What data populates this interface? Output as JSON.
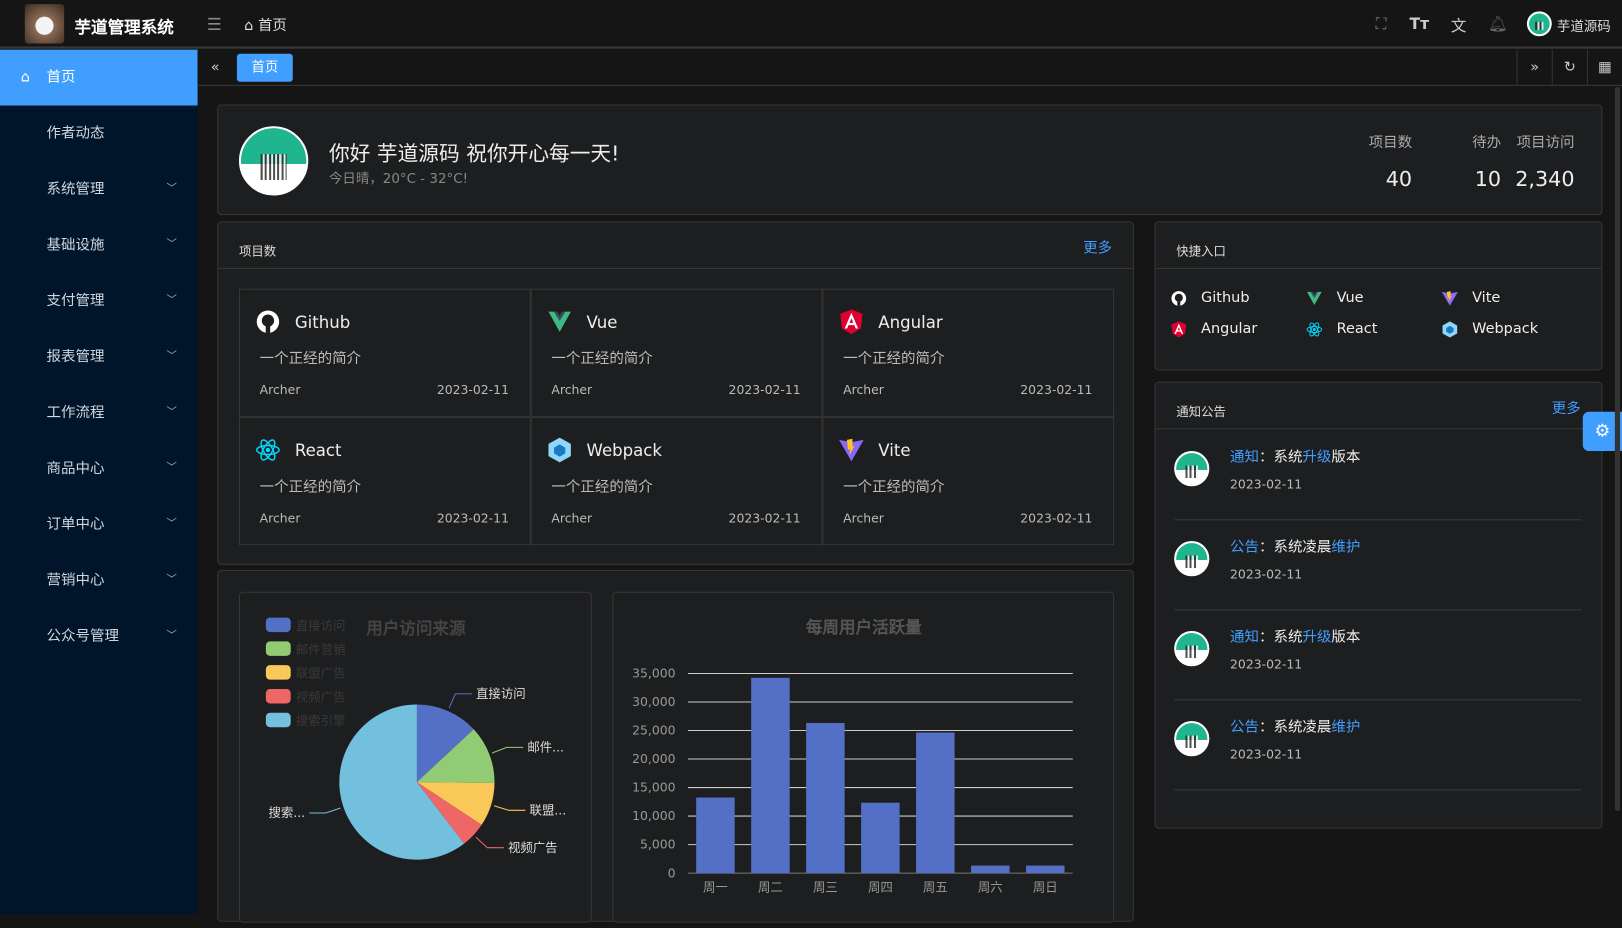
{
  "app": {
    "title": "芋道管理系统",
    "breadcrumb": "首页",
    "user": "芋道源码"
  },
  "sidebar": {
    "items": [
      {
        "label": "首页",
        "icon": "home-icon",
        "active": true
      },
      {
        "label": "作者动态"
      },
      {
        "label": "系统管理",
        "expandable": true
      },
      {
        "label": "基础设施",
        "expandable": true
      },
      {
        "label": "支付管理",
        "expandable": true
      },
      {
        "label": "报表管理",
        "expandable": true
      },
      {
        "label": "工作流程",
        "expandable": true
      },
      {
        "label": "商品中心",
        "expandable": true
      },
      {
        "label": "订单中心",
        "expandable": true
      },
      {
        "label": "营销中心",
        "expandable": true
      },
      {
        "label": "公众号管理",
        "expandable": true
      }
    ]
  },
  "tabs": [
    {
      "label": "首页",
      "active": true
    }
  ],
  "welcome": {
    "greeting": "你好 芋道源码 祝你开心每一天!",
    "weather": "今日晴，20°C - 32°C!",
    "stats": [
      {
        "label": "项目数",
        "value": "40"
      },
      {
        "label": "待办",
        "value": "10"
      },
      {
        "label": "项目访问",
        "value": "2,340"
      }
    ]
  },
  "projects": {
    "title": "项目数",
    "more": "更多",
    "items": [
      {
        "name": "Github",
        "icon": "github-icon",
        "desc": "一个正经的简介",
        "author": "Archer",
        "date": "2023-02-11"
      },
      {
        "name": "Vue",
        "icon": "vue-icon",
        "desc": "一个正经的简介",
        "author": "Archer",
        "date": "2023-02-11"
      },
      {
        "name": "Angular",
        "icon": "angular-icon",
        "desc": "一个正经的简介",
        "author": "Archer",
        "date": "2023-02-11"
      },
      {
        "name": "React",
        "icon": "react-icon",
        "desc": "一个正经的简介",
        "author": "Archer",
        "date": "2023-02-11"
      },
      {
        "name": "Webpack",
        "icon": "webpack-icon",
        "desc": "一个正经的简介",
        "author": "Archer",
        "date": "2023-02-11"
      },
      {
        "name": "Vite",
        "icon": "vite-icon",
        "desc": "一个正经的简介",
        "author": "Archer",
        "date": "2023-02-11"
      }
    ]
  },
  "shortcuts": {
    "title": "快捷入口",
    "items": [
      {
        "name": "Github",
        "icon": "github-icon"
      },
      {
        "name": "Vue",
        "icon": "vue-icon"
      },
      {
        "name": "Vite",
        "icon": "vite-icon"
      },
      {
        "name": "Angular",
        "icon": "angular-icon"
      },
      {
        "name": "React",
        "icon": "react-icon"
      },
      {
        "name": "Webpack",
        "icon": "webpack-icon"
      }
    ]
  },
  "notices": {
    "title": "通知公告",
    "more": "更多",
    "items": [
      {
        "type": "通知",
        "sep": "：",
        "pre": "系统",
        "hl": "升级",
        "post": "版本",
        "date": "2023-02-11"
      },
      {
        "type": "公告",
        "sep": "：",
        "pre": "系统凌晨",
        "hl": "维护",
        "post": "",
        "date": "2023-02-11"
      },
      {
        "type": "通知",
        "sep": "：",
        "pre": "系统",
        "hl": "升级",
        "post": "版本",
        "date": "2023-02-11"
      },
      {
        "type": "公告",
        "sep": "：",
        "pre": "系统凌晨",
        "hl": "维护",
        "post": "",
        "date": "2023-02-11"
      }
    ]
  },
  "colors": {
    "accent": "#409eff",
    "sidebar": "#001529",
    "background": "#151515"
  },
  "chart_data": [
    {
      "type": "pie",
      "title": "用户访问来源",
      "legend": "top-left",
      "labels": [
        "直接访问",
        "邮件营销",
        "联盟广告",
        "视频广告",
        "搜索引擎"
      ],
      "slice_labels": [
        "直接访问",
        "邮件...",
        "联盟...",
        "视频广告",
        "搜索..."
      ],
      "values": [
        335,
        310,
        234,
        135,
        1548
      ],
      "colors": [
        "#5470c6",
        "#91cc75",
        "#fac858",
        "#ee6666",
        "#73c0de"
      ]
    },
    {
      "type": "bar",
      "title": "每周用户活跃量",
      "categories": [
        "周一",
        "周二",
        "周三",
        "周四",
        "周五",
        "周六",
        "周日"
      ],
      "values": [
        13253,
        34235,
        26321,
        12340,
        24643,
        1322,
        1324
      ],
      "ylim": [
        0,
        35000
      ],
      "yticks": [
        "0",
        "5,000",
        "10,000",
        "15,000",
        "20,000",
        "25,000",
        "30,000",
        "35,000"
      ],
      "grid": true,
      "color": "#5470c6"
    }
  ]
}
